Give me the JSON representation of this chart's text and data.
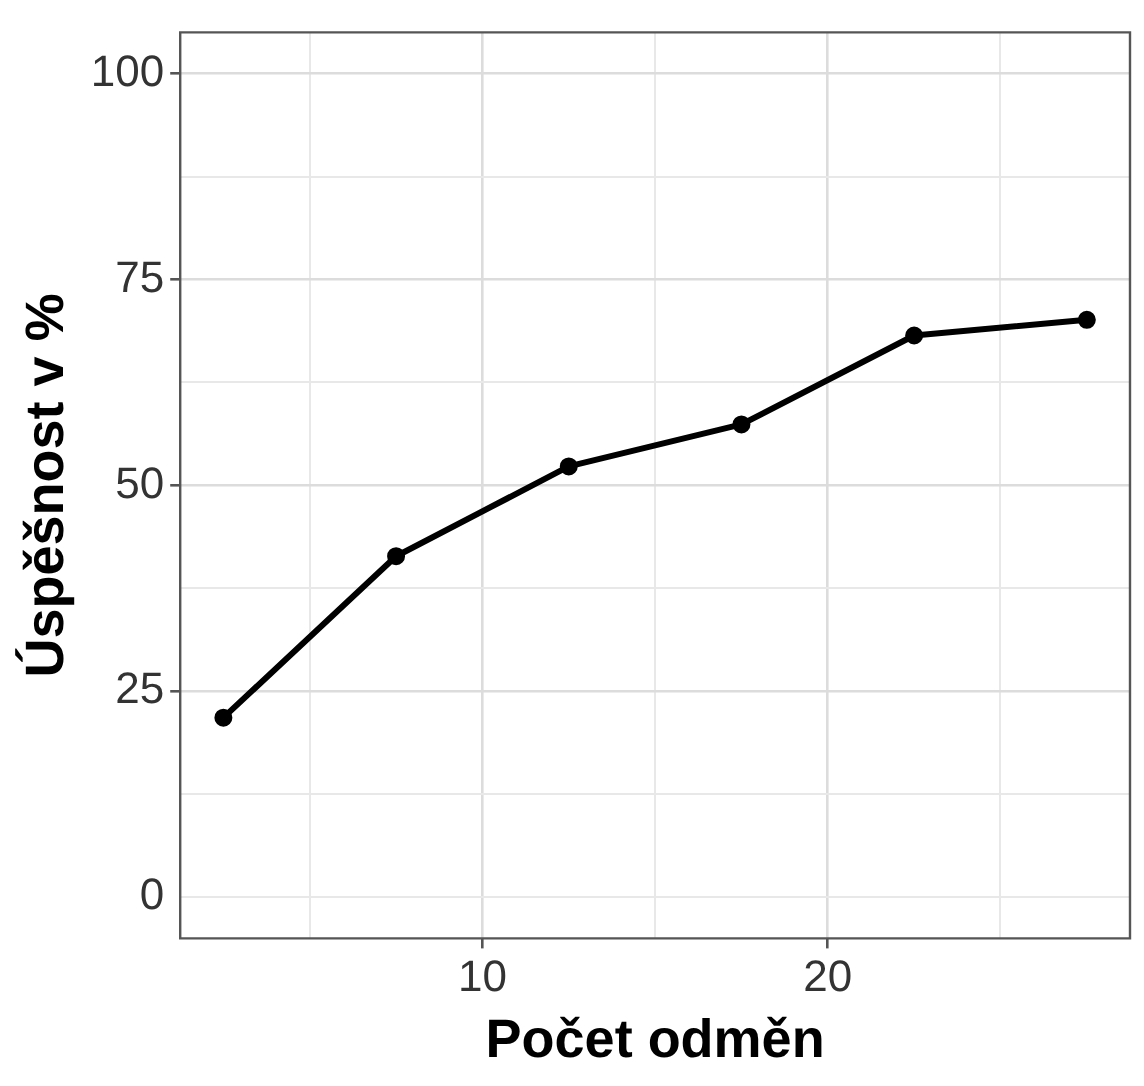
{
  "chart_data": {
    "type": "line",
    "xlabel": "Počet odměn",
    "ylabel": "Úspěšnost v %",
    "x": [
      2.5,
      7.5,
      12.5,
      17.5,
      22.5,
      27.5
    ],
    "series": [
      {
        "color": "#000000",
        "values": [
          21.8,
          41.4,
          52.3,
          57.4,
          68.2,
          70.1
        ]
      }
    ],
    "xlim": [
      1.25,
      28.75
    ],
    "xticks": [
      {
        "value": 5,
        "label": null
      },
      10,
      {
        "value": 15,
        "label": null
      },
      20,
      {
        "value": 25,
        "label": null
      }
    ],
    "ylim": [
      -5,
      105
    ],
    "yticks": [
      0,
      {
        "value": 12.5,
        "label": null
      },
      25,
      {
        "value": 37.5,
        "label": null
      },
      50,
      {
        "value": 62.5,
        "label": null
      },
      75,
      {
        "value": 87.5,
        "label": null
      },
      100
    ],
    "grid": true,
    "legend": false,
    "marker": "circle",
    "line_style": "solid"
  }
}
